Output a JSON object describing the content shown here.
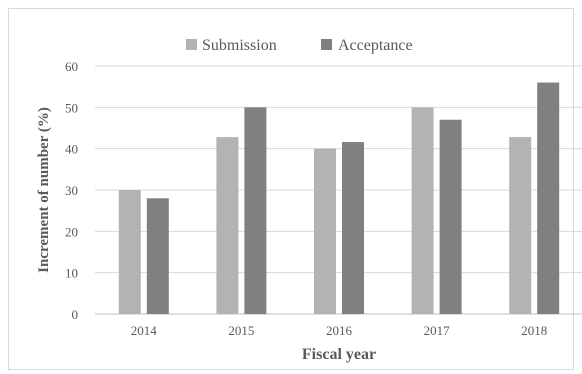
{
  "chart_data": {
    "type": "bar",
    "title": "",
    "xlabel": "Fiscal year",
    "ylabel": "Increment of number (%)",
    "categories": [
      "2014",
      "2015",
      "2016",
      "2017",
      "2018"
    ],
    "series": [
      {
        "name": "Submission",
        "color": "#b3b3b3",
        "values": [
          30,
          42.8,
          40,
          50,
          42.8
        ]
      },
      {
        "name": "Acceptance",
        "color": "#808080",
        "values": [
          28,
          50,
          41.6,
          47,
          56
        ]
      }
    ],
    "ylim": [
      0,
      60
    ],
    "yticks": [
      "0",
      "10",
      "20",
      "30",
      "40",
      "50",
      "60"
    ],
    "grid": true,
    "legend_position": "top"
  }
}
